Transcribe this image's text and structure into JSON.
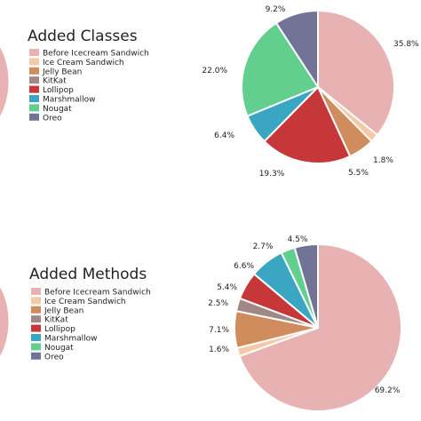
{
  "colors": {
    "Before Icecream Sandwich": "#e8b2b2",
    "Ice Cream Sandwich": "#f6c9a6",
    "Jelly Bean": "#d08c5c",
    "KitKat": "#a28787",
    "Lollipop": "#c6373a",
    "Marshmallow": "#3aa6c2",
    "Nougat": "#63cf8f",
    "Oreo": "#717497"
  },
  "chart_data": [
    {
      "type": "pie",
      "title": "Added Classes",
      "categories": [
        "Before Icecream Sandwich",
        "Ice Cream Sandwich",
        "Jelly Bean",
        "KitKat",
        "Lollipop",
        "Marshmallow",
        "Nougat",
        "Oreo"
      ],
      "values": [
        35.8,
        1.8,
        5.5,
        0.0,
        19.3,
        6.4,
        22.0,
        9.2
      ],
      "labels": [
        "35.8%",
        "1.8%",
        "5.5%",
        "",
        "19.3%",
        "6.4%",
        "22.0%",
        "9.2%"
      ],
      "legend": "left"
    },
    {
      "type": "pie",
      "title": "Added Methods",
      "categories": [
        "Before Icecream Sandwich",
        "Ice Cream Sandwich",
        "Jelly Bean",
        "KitKat",
        "Lollipop",
        "Marshmallow",
        "Nougat",
        "Oreo"
      ],
      "values": [
        69.2,
        1.6,
        7.1,
        2.5,
        5.4,
        6.6,
        2.7,
        4.5
      ],
      "labels": [
        "69.2%",
        "1.6%",
        "7.1%",
        "2.5%",
        "5.4%",
        "6.6%",
        "2.7%",
        "4.5%"
      ],
      "legend": "left"
    }
  ]
}
